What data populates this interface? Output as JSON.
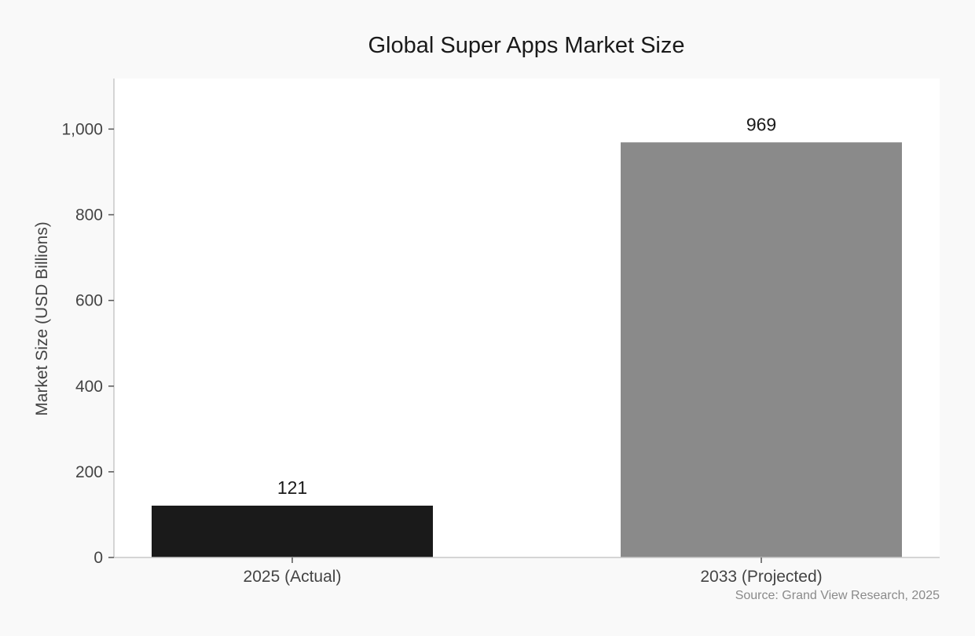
{
  "chart_data": {
    "type": "bar",
    "title": "Global Super Apps Market Size",
    "ylabel": "Market Size (USD Billions)",
    "xlabel": "",
    "categories": [
      "2025 (Actual)",
      "2033 (Projected)"
    ],
    "values": [
      121,
      969
    ],
    "data_labels": [
      "121",
      "969"
    ],
    "bar_colors": [
      "#1a1a1a",
      "#8a8a8a"
    ],
    "ylim": [
      0,
      1118
    ],
    "yticks": [
      0,
      200,
      400,
      600,
      800,
      1000
    ],
    "ytick_labels": [
      "0",
      "200",
      "400",
      "600",
      "800",
      "1,000"
    ],
    "grid": false,
    "legend": "none",
    "source": "Source: Grand View Research, 2025"
  }
}
